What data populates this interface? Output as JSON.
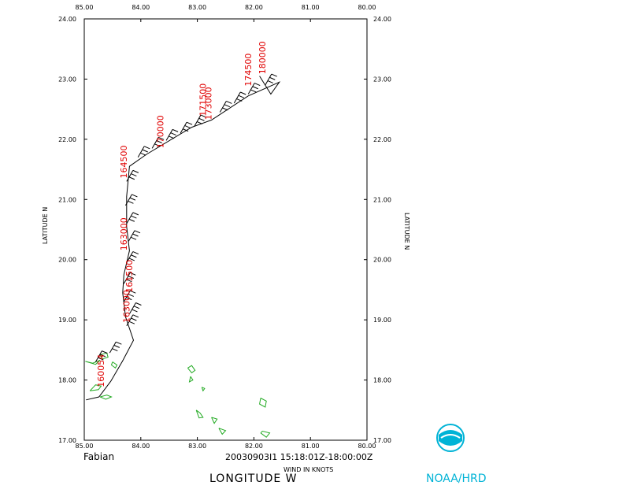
{
  "chart_data": {
    "type": "track",
    "storm_name": "Fabian",
    "obs_window": "20030903I1 15:18:01Z-18:00:00Z",
    "wind_units_label": "WIND IN KNOTS",
    "xlabel": "LONGITUDE   W",
    "ylabel": "LATITUDE   N",
    "xlim": [
      85,
      80
    ],
    "ylim": [
      17,
      24
    ],
    "x_ticks": [
      "85.00",
      "84.00",
      "83.00",
      "82.00",
      "81.00",
      "80.00"
    ],
    "y_ticks": [
      "17.00",
      "18.00",
      "19.00",
      "20.00",
      "21.00",
      "22.00",
      "23.00",
      "24.00"
    ],
    "track": [
      {
        "lon": 84.97,
        "lat": 17.67
      },
      {
        "lon": 84.74,
        "lat": 17.72
      },
      {
        "lon": 84.53,
        "lat": 17.98
      },
      {
        "lon": 84.32,
        "lat": 18.32
      },
      {
        "lon": 84.13,
        "lat": 18.66
      },
      {
        "lon": 84.27,
        "lat": 19.05
      },
      {
        "lon": 84.32,
        "lat": 19.45
      },
      {
        "lon": 84.3,
        "lat": 19.75
      },
      {
        "lon": 84.2,
        "lat": 20.15
      },
      {
        "lon": 84.25,
        "lat": 20.55
      },
      {
        "lon": 84.25,
        "lat": 21.05
      },
      {
        "lon": 84.2,
        "lat": 21.55
      },
      {
        "lon": 83.9,
        "lat": 21.75
      },
      {
        "lon": 83.1,
        "lat": 22.2
      },
      {
        "lon": 82.75,
        "lat": 22.32
      },
      {
        "lon": 82.1,
        "lat": 22.72
      },
      {
        "lon": 81.55,
        "lat": 22.95
      },
      {
        "lon": 81.7,
        "lat": 22.75
      },
      {
        "lon": 81.9,
        "lat": 23.05
      }
    ],
    "time_labels": [
      {
        "text": "160054",
        "lon": 84.65,
        "lat": 17.88
      },
      {
        "text": "163000",
        "lon": 84.2,
        "lat": 18.95
      },
      {
        "text": "161500",
        "lon": 84.15,
        "lat": 19.45
      },
      {
        "text": "163000",
        "lon": 84.25,
        "lat": 20.15
      },
      {
        "text": "164500",
        "lon": 84.25,
        "lat": 21.35
      },
      {
        "text": "170000",
        "lon": 83.6,
        "lat": 21.85
      },
      {
        "text": "171500",
        "lon": 82.85,
        "lat": 22.38
      },
      {
        "text": "173000",
        "lon": 82.75,
        "lat": 22.32
      },
      {
        "text": "174500",
        "lon": 82.05,
        "lat": 22.88
      },
      {
        "text": "180000",
        "lon": 81.8,
        "lat": 23.08
      }
    ],
    "wind_barbs": [
      {
        "lon": 84.05,
        "lat": 21.7
      },
      {
        "lon": 83.8,
        "lat": 21.85
      },
      {
        "lon": 83.55,
        "lat": 21.98
      },
      {
        "lon": 83.3,
        "lat": 22.1
      },
      {
        "lon": 83.05,
        "lat": 22.22
      },
      {
        "lon": 82.6,
        "lat": 22.45
      },
      {
        "lon": 82.35,
        "lat": 22.6
      },
      {
        "lon": 82.1,
        "lat": 22.75
      },
      {
        "lon": 81.8,
        "lat": 22.9
      },
      {
        "lon": 84.25,
        "lat": 21.3
      },
      {
        "lon": 84.27,
        "lat": 20.9
      },
      {
        "lon": 84.25,
        "lat": 20.6
      },
      {
        "lon": 84.22,
        "lat": 20.3
      },
      {
        "lon": 84.25,
        "lat": 19.95
      },
      {
        "lon": 84.3,
        "lat": 19.6
      },
      {
        "lon": 84.3,
        "lat": 19.3
      },
      {
        "lon": 84.2,
        "lat": 19.1
      },
      {
        "lon": 84.25,
        "lat": 18.9
      },
      {
        "lon": 84.55,
        "lat": 18.45
      },
      {
        "lon": 84.8,
        "lat": 18.3
      }
    ],
    "islands": [
      [
        [
          84.98,
          18.31
        ],
        [
          84.85,
          18.28
        ],
        [
          84.72,
          18.33
        ],
        [
          84.8,
          18.26
        ],
        [
          84.98,
          18.31
        ]
      ],
      [
        [
          84.72,
          18.42
        ],
        [
          84.6,
          18.45
        ],
        [
          84.58,
          18.38
        ],
        [
          84.68,
          18.35
        ],
        [
          84.72,
          18.42
        ]
      ],
      [
        [
          84.5,
          18.3
        ],
        [
          84.42,
          18.25
        ],
        [
          84.45,
          18.2
        ],
        [
          84.52,
          18.25
        ],
        [
          84.5,
          18.3
        ]
      ],
      [
        [
          84.9,
          17.82
        ],
        [
          84.75,
          17.84
        ],
        [
          84.7,
          17.9
        ],
        [
          84.8,
          17.92
        ],
        [
          84.9,
          17.82
        ]
      ],
      [
        [
          84.72,
          17.72
        ],
        [
          84.6,
          17.75
        ],
        [
          84.52,
          17.72
        ],
        [
          84.62,
          17.68
        ],
        [
          84.72,
          17.72
        ]
      ],
      [
        [
          83.17,
          18.2
        ],
        [
          83.1,
          18.24
        ],
        [
          83.04,
          18.16
        ],
        [
          83.1,
          18.12
        ],
        [
          83.17,
          18.2
        ]
      ],
      [
        [
          83.12,
          18.06
        ],
        [
          83.08,
          18.0
        ],
        [
          83.14,
          17.97
        ],
        [
          83.12,
          18.06
        ]
      ],
      [
        [
          82.92,
          17.88
        ],
        [
          82.87,
          17.86
        ],
        [
          82.9,
          17.82
        ],
        [
          82.92,
          17.88
        ]
      ],
      [
        [
          83.02,
          17.5
        ],
        [
          82.95,
          17.45
        ],
        [
          82.9,
          17.38
        ],
        [
          82.97,
          17.37
        ],
        [
          83.02,
          17.5
        ]
      ],
      [
        [
          82.75,
          17.38
        ],
        [
          82.65,
          17.35
        ],
        [
          82.7,
          17.28
        ],
        [
          82.75,
          17.38
        ]
      ],
      [
        [
          82.62,
          17.2
        ],
        [
          82.5,
          17.16
        ],
        [
          82.56,
          17.1
        ],
        [
          82.62,
          17.2
        ]
      ],
      [
        [
          81.88,
          17.7
        ],
        [
          81.78,
          17.65
        ],
        [
          81.8,
          17.55
        ],
        [
          81.9,
          17.6
        ],
        [
          81.88,
          17.7
        ]
      ],
      [
        [
          81.88,
          17.12
        ],
        [
          81.78,
          17.05
        ],
        [
          81.72,
          17.12
        ],
        [
          81.85,
          17.15
        ],
        [
          81.88,
          17.12
        ]
      ]
    ]
  },
  "credit": "NOAA/HRD"
}
